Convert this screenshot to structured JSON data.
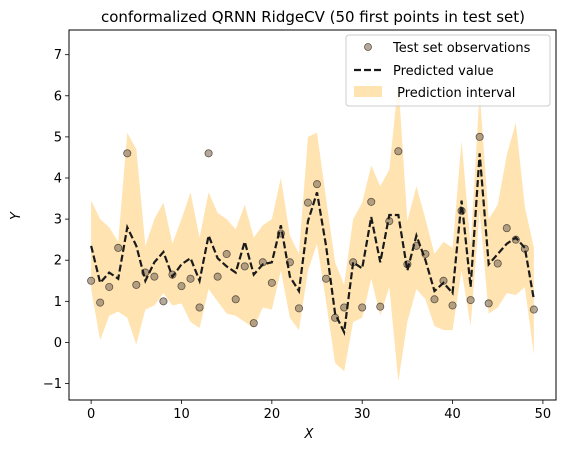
{
  "chart_data": {
    "type": "scatter",
    "title": "conformalized QRNN RidgeCV (50 first points in test set)",
    "xlabel": "X",
    "ylabel": "Y",
    "xlim": [
      -2.45,
      51.45
    ],
    "ylim": [
      -1.4,
      7.6
    ],
    "xticks": [
      0,
      10,
      20,
      30,
      40,
      50
    ],
    "yticks": [
      -1,
      0,
      1,
      2,
      3,
      4,
      5,
      6,
      7
    ],
    "xtick_labels": [
      "0",
      "10",
      "20",
      "30",
      "40",
      "50"
    ],
    "ytick_labels": [
      "−1",
      "0",
      "1",
      "2",
      "3",
      "4",
      "5",
      "6",
      "7"
    ],
    "grid": false,
    "legend_position": "top-right",
    "colors": {
      "observations": "#8a7a66",
      "predicted": "#1a1a1a",
      "interval": "#ffe3b0"
    },
    "series": [
      {
        "name": "Test set observations",
        "kind": "scatter",
        "x": [
          0,
          1,
          2,
          3,
          4,
          5,
          6,
          7,
          8,
          9,
          10,
          11,
          12,
          13,
          14,
          15,
          16,
          17,
          18,
          19,
          20,
          21,
          22,
          23,
          24,
          25,
          26,
          27,
          28,
          29,
          30,
          31,
          32,
          33,
          34,
          35,
          36,
          37,
          38,
          39,
          40,
          41,
          42,
          43,
          44,
          45,
          46,
          47,
          48,
          49
        ],
        "y": [
          1.5,
          0.97,
          1.35,
          2.3,
          4.6,
          1.4,
          1.7,
          1.6,
          1.0,
          1.65,
          1.37,
          1.55,
          0.85,
          4.6,
          1.6,
          2.15,
          1.05,
          1.85,
          0.47,
          1.95,
          1.45,
          2.65,
          1.95,
          0.83,
          3.4,
          3.85,
          1.55,
          0.6,
          0.85,
          1.95,
          0.85,
          3.42,
          0.87,
          2.95,
          4.65,
          1.9,
          2.35,
          2.15,
          1.05,
          1.5,
          0.9,
          3.2,
          1.03,
          5.0,
          0.95,
          1.92,
          2.78,
          2.5,
          2.28,
          0.8
        ]
      },
      {
        "name": "Predicted value",
        "kind": "line",
        "x": [
          0,
          1,
          2,
          3,
          4,
          5,
          6,
          7,
          8,
          9,
          10,
          11,
          12,
          13,
          14,
          15,
          16,
          17,
          18,
          19,
          20,
          21,
          22,
          23,
          24,
          25,
          26,
          27,
          28,
          29,
          30,
          31,
          32,
          33,
          34,
          35,
          36,
          37,
          38,
          39,
          40,
          41,
          42,
          43,
          44,
          45,
          46,
          47,
          48,
          49
        ],
        "y": [
          2.35,
          1.45,
          1.7,
          1.55,
          2.8,
          2.35,
          1.5,
          1.95,
          2.2,
          1.6,
          1.9,
          2.05,
          1.5,
          2.6,
          2.05,
          1.85,
          1.7,
          2.45,
          1.65,
          1.9,
          1.95,
          2.85,
          1.6,
          1.25,
          2.95,
          3.65,
          2.35,
          0.7,
          0.25,
          1.95,
          1.8,
          3.05,
          1.95,
          3.1,
          3.1,
          1.75,
          2.6,
          2.0,
          1.25,
          1.45,
          1.2,
          3.45,
          1.35,
          4.6,
          1.9,
          2.15,
          2.4,
          2.55,
          2.3,
          1.05
        ]
      },
      {
        "name": "Prediction interval",
        "kind": "band",
        "x": [
          0,
          1,
          2,
          3,
          4,
          5,
          6,
          7,
          8,
          9,
          10,
          11,
          12,
          13,
          14,
          15,
          16,
          17,
          18,
          19,
          20,
          21,
          22,
          23,
          24,
          25,
          26,
          27,
          28,
          29,
          30,
          31,
          32,
          33,
          34,
          35,
          36,
          37,
          38,
          39,
          40,
          41,
          42,
          43,
          44,
          45,
          46,
          47,
          48,
          49
        ],
        "lower": [
          1.3,
          0.05,
          0.65,
          0.75,
          0.6,
          -0.05,
          0.8,
          0.9,
          1.2,
          0.9,
          0.95,
          0.5,
          0.35,
          1.3,
          1.0,
          0.7,
          0.65,
          0.5,
          0.35,
          0.85,
          0.8,
          1.75,
          0.6,
          0.3,
          1.75,
          2.4,
          1.0,
          -0.5,
          -0.7,
          0.5,
          0.6,
          1.55,
          0.65,
          1.35,
          -0.95,
          0.5,
          1.3,
          1.05,
          0.4,
          0.3,
          0.3,
          1.75,
          0.4,
          3.2,
          0.7,
          0.85,
          1.2,
          1.15,
          1.35,
          -0.3
        ],
        "upper": [
          3.45,
          3.0,
          2.8,
          2.45,
          5.1,
          4.7,
          2.35,
          3.0,
          3.4,
          2.4,
          3.0,
          3.65,
          2.55,
          3.65,
          3.15,
          3.0,
          2.75,
          3.35,
          2.55,
          2.85,
          3.0,
          4.0,
          2.6,
          2.15,
          5.0,
          5.1,
          3.5,
          1.95,
          1.4,
          3.0,
          3.4,
          4.3,
          3.8,
          4.2,
          6.35,
          2.95,
          3.8,
          3.0,
          2.15,
          2.45,
          2.3,
          4.9,
          2.35,
          6.1,
          3.0,
          3.35,
          4.55,
          5.35,
          3.3,
          2.3
        ]
      }
    ]
  },
  "legend": {
    "items": [
      {
        "label": "Test set observations"
      },
      {
        "label": "Predicted value"
      },
      {
        "label": " Prediction interval"
      }
    ]
  }
}
